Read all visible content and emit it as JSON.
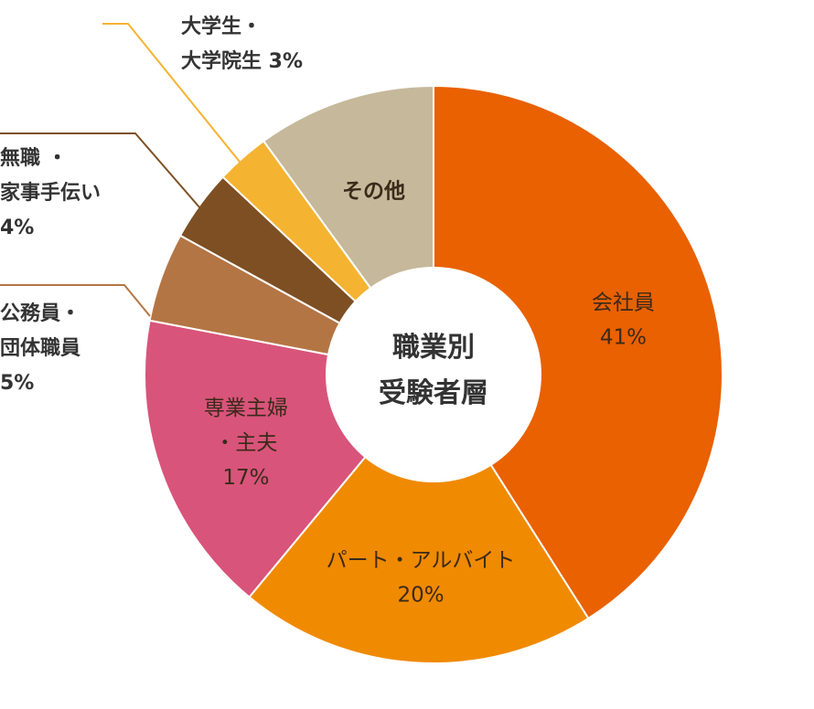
{
  "chart_data": {
    "type": "pie",
    "center_label": [
      "職業別",
      "受験者層"
    ],
    "slices": [
      {
        "label": "会社員",
        "value": 41,
        "value_text": "41%",
        "color": "#E96100"
      },
      {
        "label": "パート・アルバイト",
        "value": 20,
        "value_text": "20%",
        "color": "#F08A00"
      },
      {
        "label": "専業主婦・主夫",
        "value": 17,
        "value_text": "17%",
        "color": "#D8547A"
      },
      {
        "label": "公務員・団体職員",
        "value": 5,
        "value_text": "5%",
        "color": "#B47544"
      },
      {
        "label": "無職・家事手伝い",
        "value": 4,
        "value_text": "4%",
        "color": "#7E4F23"
      },
      {
        "label": "大学生・大学院生",
        "value": 3,
        "value_text": "3%",
        "color": "#F5B332"
      },
      {
        "label": "その他",
        "value": 10,
        "value_text": "",
        "color": "#C6B89A"
      }
    ],
    "label_lines": {
      "会社員": [
        "会社員",
        "41%"
      ],
      "パート・アルバイト": [
        "パート・アルバイト",
        "20%"
      ],
      "専業主婦・主夫": [
        "専業主婦",
        "・主夫",
        "17%"
      ],
      "公務員・団体職員": [
        "公務員・",
        "団体職員",
        "5%"
      ],
      "無職・家事手伝い": [
        "無職 ・",
        "家事手伝い",
        "4%"
      ],
      "大学生・大学院生": [
        "大学生・",
        "大学院生 3%"
      ],
      "その他": [
        "その他"
      ]
    },
    "legend": "none"
  }
}
